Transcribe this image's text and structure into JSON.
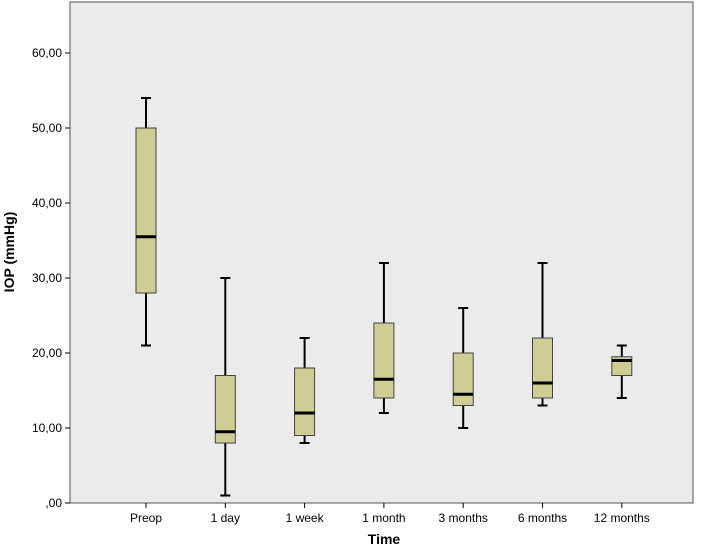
{
  "chart_data": {
    "type": "boxplot",
    "xlabel": "Time",
    "ylabel": "IOP (mmHg)",
    "ylim": [
      0,
      65
    ],
    "yticks": [
      0,
      10,
      20,
      30,
      40,
      50,
      60
    ],
    "ytick_labels": [
      ",00",
      "10,00",
      "20,00",
      "30,00",
      "40,00",
      "50,00",
      "60,00"
    ],
    "grid": false,
    "categories": [
      "Preop",
      "1 day",
      "1 week",
      "1 month",
      "3 months",
      "6 months",
      "12 months"
    ],
    "boxes": [
      {
        "category": "Preop",
        "min": 21,
        "q1": 28,
        "median": 35.5,
        "q3": 50,
        "max": 54
      },
      {
        "category": "1 day",
        "min": 1,
        "q1": 8,
        "median": 9.5,
        "q3": 17,
        "max": 30
      },
      {
        "category": "1 week",
        "min": 8,
        "q1": 9,
        "median": 12,
        "q3": 18,
        "max": 22
      },
      {
        "category": "1 month",
        "min": 12,
        "q1": 14,
        "median": 16.5,
        "q3": 24,
        "max": 32
      },
      {
        "category": "3 months",
        "min": 10,
        "q1": 13,
        "median": 14.5,
        "q3": 20,
        "max": 26
      },
      {
        "category": "6 months",
        "min": 13,
        "q1": 14,
        "median": 16,
        "q3": 22,
        "max": 32
      },
      {
        "category": "12 months",
        "min": 14,
        "q1": 17,
        "median": 19,
        "q3": 19.5,
        "max": 21
      }
    ],
    "colors": {
      "plot_background": "#ebebeb",
      "box_fill": "#cfcc94",
      "box_stroke": "#444444",
      "median": "#000000"
    }
  }
}
